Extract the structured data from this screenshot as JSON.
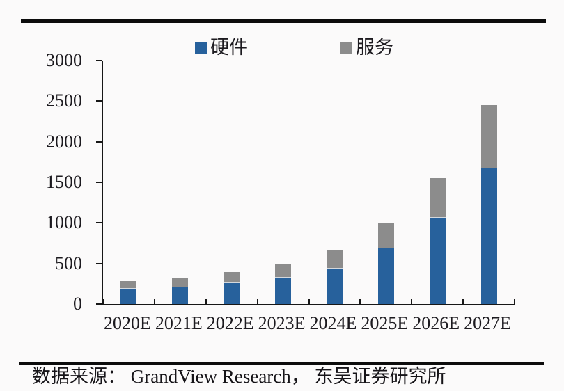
{
  "legend": {
    "items": [
      {
        "label": "硬件",
        "color": "#27619C"
      },
      {
        "label": "服务",
        "color": "#8C8C8C"
      }
    ]
  },
  "chart_data": {
    "type": "bar",
    "stacked": true,
    "title": "",
    "xlabel": "",
    "ylabel": "",
    "categories": [
      "2020E",
      "2021E",
      "2022E",
      "2023E",
      "2024E",
      "2025E",
      "2026E",
      "2027E"
    ],
    "series": [
      {
        "name": "硬件",
        "color": "#27619C",
        "values": [
          190,
          210,
          260,
          325,
          440,
          690,
          1060,
          1670
        ]
      },
      {
        "name": "服务",
        "color": "#8C8C8C",
        "values": [
          90,
          105,
          135,
          165,
          230,
          310,
          490,
          780
        ]
      }
    ],
    "totals": [
      280,
      315,
      395,
      490,
      670,
      1000,
      1550,
      2450
    ],
    "ylim": [
      0,
      3000
    ],
    "yticks": [
      3000,
      2500,
      2000,
      1500,
      1000,
      500,
      0
    ],
    "grid": false,
    "legend_position": "top"
  },
  "source": {
    "text": "数据来源： GrandView Research， 东吴证券研究所"
  }
}
